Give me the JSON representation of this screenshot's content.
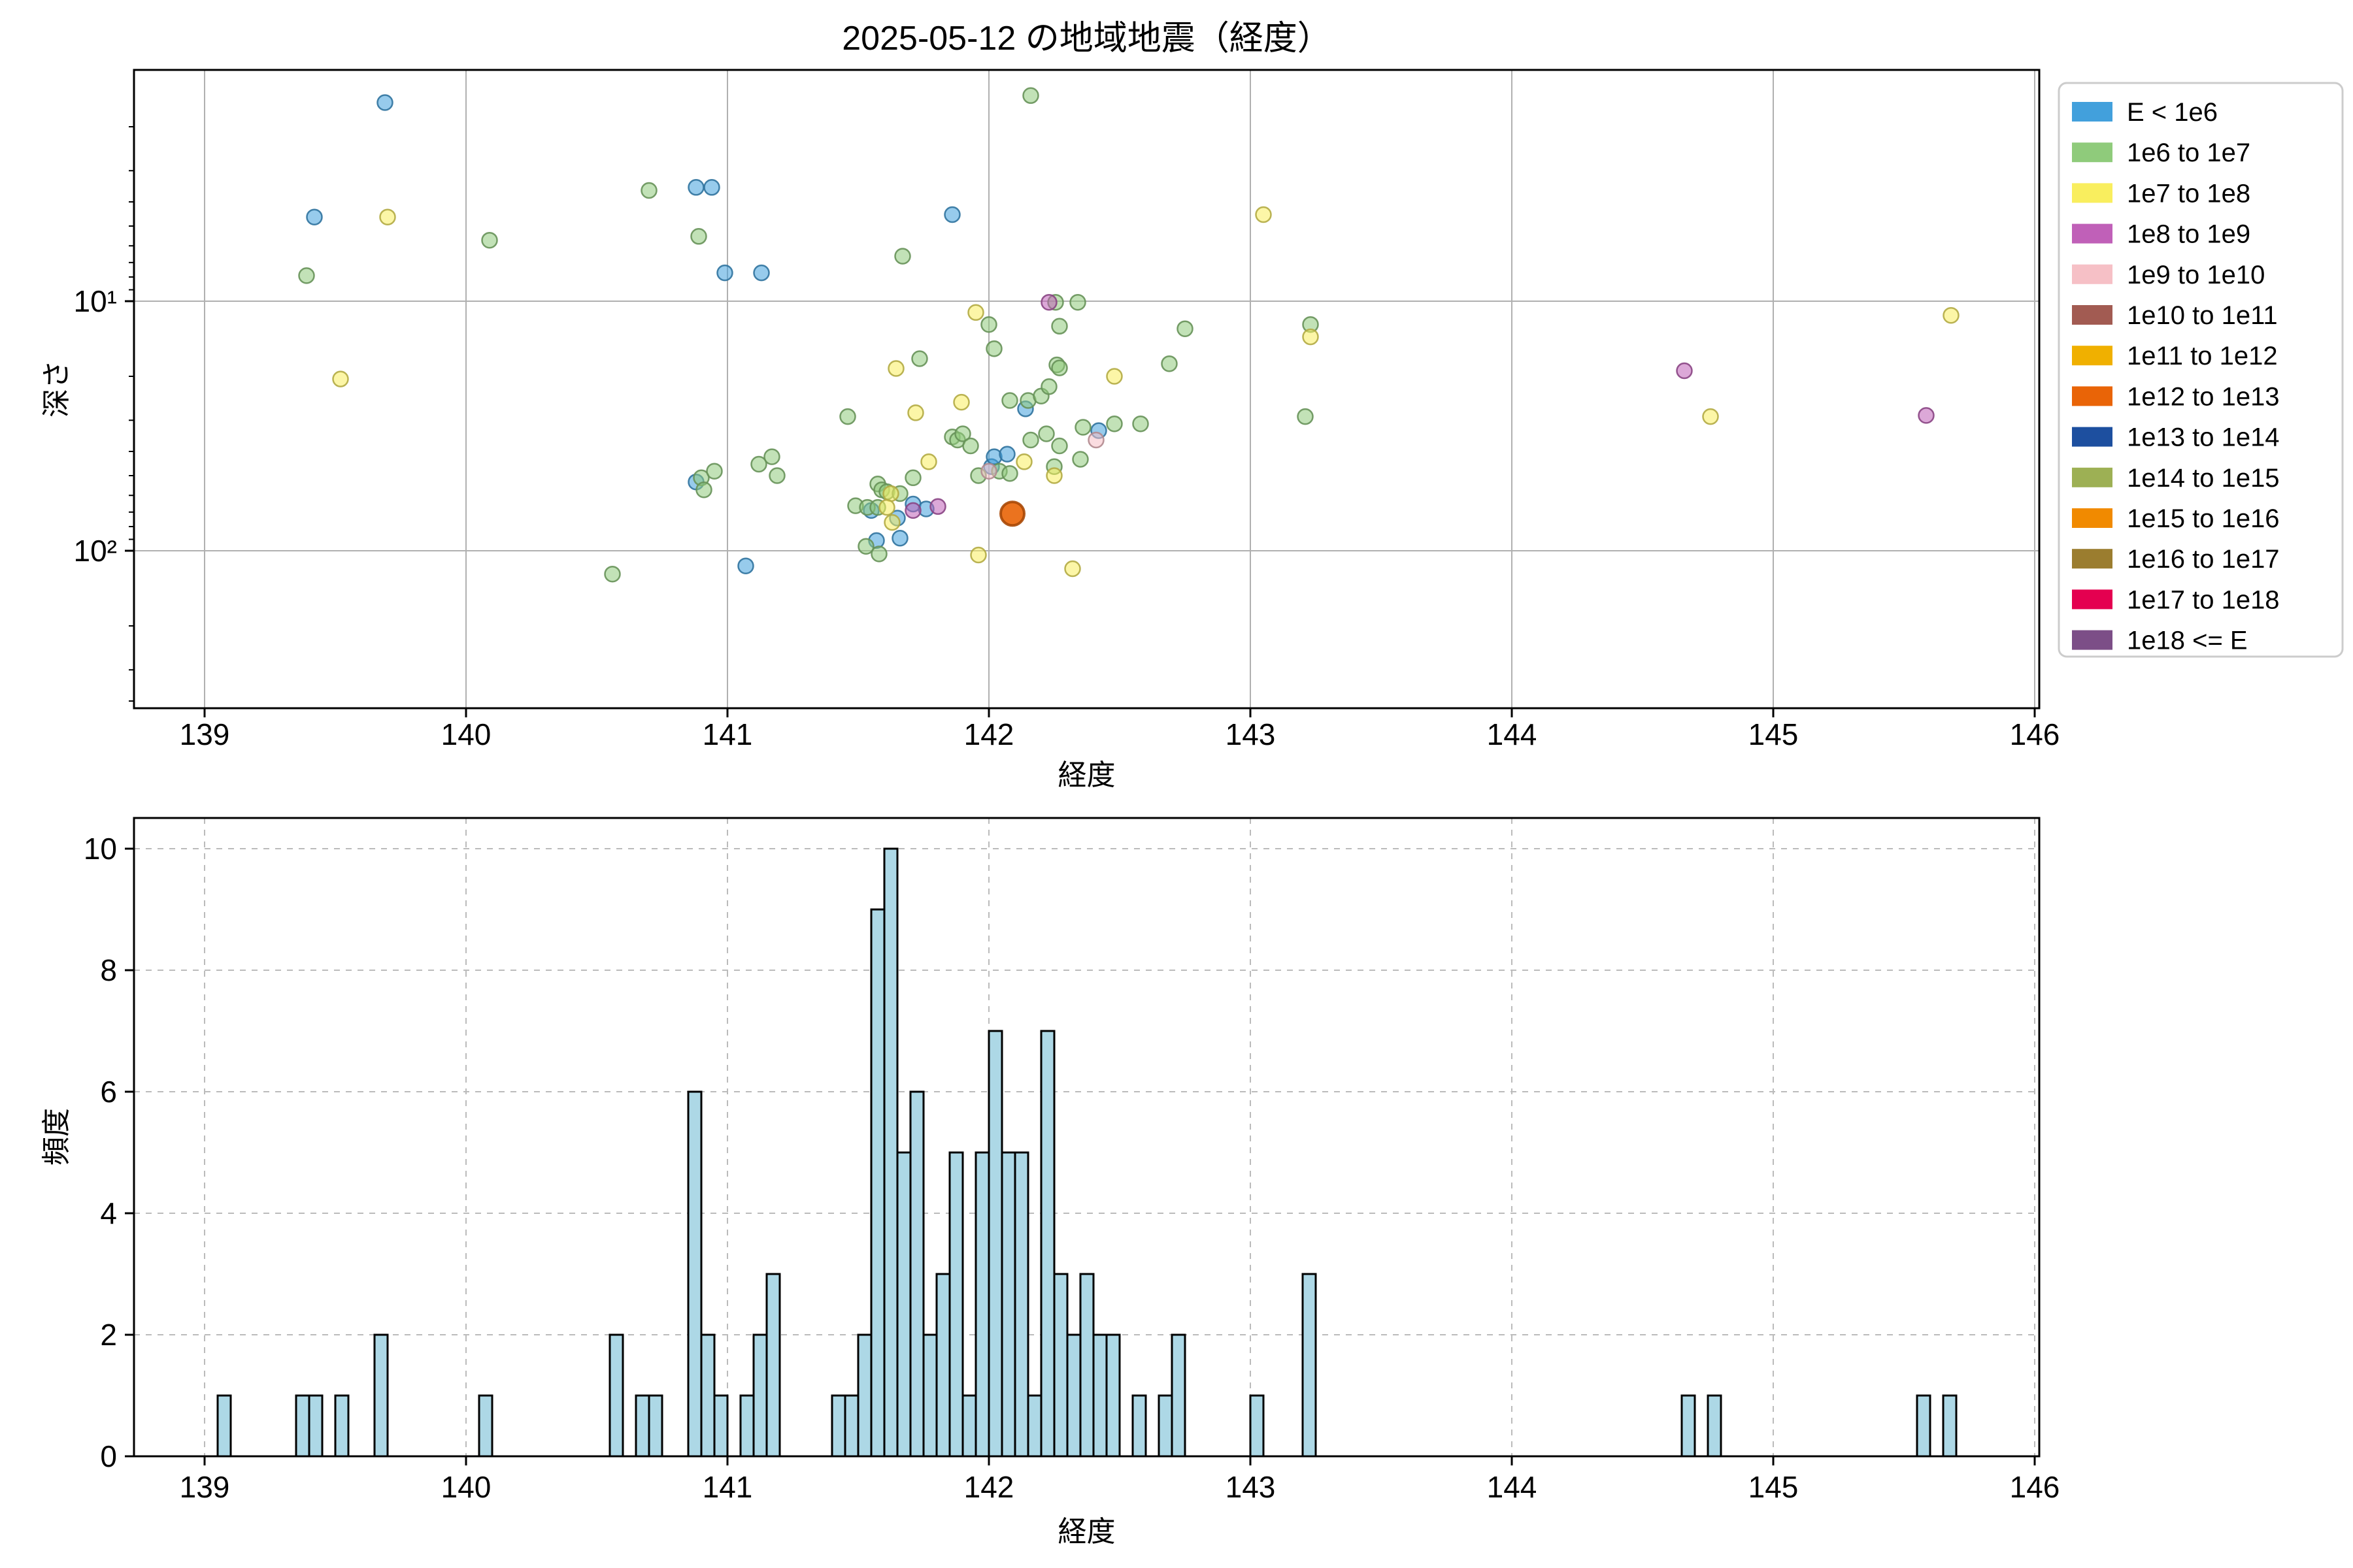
{
  "figure": {
    "title": "2025-05-12 の地域地震（経度）"
  },
  "chart_data": [
    {
      "type": "scatter",
      "title": "2025-05-12 の地域地震（経度）",
      "xlabel": "経度",
      "ylabel": "深さ",
      "x_ticks": [
        139,
        140,
        141,
        142,
        143,
        144,
        145,
        146
      ],
      "xlim": [
        138.73,
        146.02
      ],
      "y_axis": {
        "scale": "log",
        "inverted": true,
        "top_value": 1.18,
        "bottom_value": 427,
        "major_ticks": [
          {
            "value": 10,
            "label": "10¹"
          },
          {
            "value": 100,
            "label": "10²"
          }
        ],
        "minor_ticks": [
          2,
          3,
          4,
          5,
          6,
          7,
          8,
          9,
          20,
          30,
          40,
          50,
          60,
          70,
          80,
          90,
          200,
          300,
          400
        ]
      },
      "grid": "solid",
      "legend_position": "outside-right",
      "legend": [
        {
          "label": "E < 1e6",
          "color": "#42A0DC"
        },
        {
          "label": "1e6 to 1e7",
          "color": "#8FCB7B"
        },
        {
          "label": "1e7 to 1e8",
          "color": "#F9EE5E"
        },
        {
          "label": "1e8 to 1e9",
          "color": "#C060B8"
        },
        {
          "label": "1e9 to 1e10",
          "color": "#F6C0C6"
        },
        {
          "label": "1e10 to 1e11",
          "color": "#A25B52"
        },
        {
          "label": "1e11 to 1e12",
          "color": "#F0B000"
        },
        {
          "label": "1e12 to 1e13",
          "color": "#E96407"
        },
        {
          "label": "1e13 to 1e14",
          "color": "#1D4F9F"
        },
        {
          "label": "1e14 to 1e15",
          "color": "#9DB054"
        },
        {
          "label": "1e15 to 1e16",
          "color": "#F18A00"
        },
        {
          "label": "1e16 to 1e17",
          "color": "#9B7D2F"
        },
        {
          "label": "1e17 to 1e18",
          "color": "#E40050"
        },
        {
          "label": "1e18 <= E",
          "color": "#7C4E87"
        }
      ],
      "series": [
        {
          "name": "E < 1e6",
          "color": "#42A0DC",
          "points": [
            [
              139.69,
              1.6
            ],
            [
              139.42,
              4.6
            ],
            [
              140.88,
              3.5
            ],
            [
              140.94,
              3.5
            ],
            [
              140.99,
              7.7
            ],
            [
              141.13,
              7.7
            ],
            [
              141.86,
              4.5
            ],
            [
              140.88,
              53
            ],
            [
              141.07,
              115
            ],
            [
              141.55,
              69
            ],
            [
              141.65,
              74
            ],
            [
              141.57,
              91
            ],
            [
              141.66,
              89
            ],
            [
              141.71,
              65
            ],
            [
              141.76,
              68
            ],
            [
              142.01,
              46
            ],
            [
              142.02,
              42
            ],
            [
              142.07,
              41
            ],
            [
              142.14,
              27
            ],
            [
              142.42,
              33
            ]
          ]
        },
        {
          "name": "1e6 to 1e7",
          "color": "#8FCB7B",
          "points": [
            [
              139.39,
              7.9
            ],
            [
              140.09,
              5.7
            ],
            [
              140.7,
              3.6
            ],
            [
              140.89,
              5.5
            ],
            [
              140.56,
              124
            ],
            [
              140.9,
              51
            ],
            [
              140.91,
              57
            ],
            [
              140.95,
              48
            ],
            [
              141.12,
              45
            ],
            [
              141.17,
              42
            ],
            [
              141.19,
              50
            ],
            [
              141.46,
              29
            ],
            [
              141.53,
              96
            ],
            [
              141.58,
              103
            ],
            [
              141.575,
              54
            ],
            [
              141.59,
              57
            ],
            [
              141.61,
              58
            ],
            [
              141.49,
              66
            ],
            [
              141.535,
              67
            ],
            [
              141.575,
              67
            ],
            [
              141.66,
              59
            ],
            [
              141.71,
              51
            ],
            [
              141.735,
              17
            ],
            [
              141.67,
              6.6
            ],
            [
              141.86,
              35
            ],
            [
              141.88,
              36
            ],
            [
              141.9,
              34
            ],
            [
              141.93,
              38
            ],
            [
              141.96,
              50
            ],
            [
              142.04,
              48
            ],
            [
              142.08,
              49
            ],
            [
              142.08,
              25
            ],
            [
              142.15,
              25
            ],
            [
              142.16,
              36
            ],
            [
              142.22,
              34
            ],
            [
              142.27,
              38
            ],
            [
              142.2,
              24
            ],
            [
              142.23,
              22
            ],
            [
              142.26,
              18
            ],
            [
              142.16,
              1.5
            ],
            [
              142.0,
              12.4
            ],
            [
              142.02,
              15.5
            ],
            [
              142.255,
              10.1
            ],
            [
              142.34,
              10.1
            ],
            [
              142.27,
              12.6
            ],
            [
              142.75,
              12.9
            ],
            [
              142.27,
              18.5
            ],
            [
              142.69,
              17.8
            ],
            [
              142.36,
              32
            ],
            [
              142.48,
              31
            ],
            [
              142.58,
              31
            ],
            [
              142.35,
              43
            ],
            [
              142.25,
              46
            ],
            [
              143.23,
              12.4
            ],
            [
              143.21,
              29
            ]
          ]
        },
        {
          "name": "1e7 to 1e8",
          "color": "#F9EE5E",
          "points": [
            [
              139.7,
              4.6
            ],
            [
              139.52,
              20.5
            ],
            [
              141.645,
              18.6
            ],
            [
              141.72,
              28
            ],
            [
              141.895,
              25.4
            ],
            [
              141.77,
              44
            ],
            [
              141.625,
              59
            ],
            [
              141.61,
              67
            ],
            [
              141.63,
              77
            ],
            [
              141.96,
              104
            ],
            [
              142.135,
              44
            ],
            [
              142.25,
              50
            ],
            [
              142.48,
              20
            ],
            [
              141.95,
              11.1
            ],
            [
              143.05,
              4.5
            ],
            [
              143.23,
              13.9
            ],
            [
              144.76,
              29
            ],
            [
              145.68,
              11.4
            ],
            [
              142.32,
              118
            ]
          ]
        },
        {
          "name": "1e8 to 1e9",
          "color": "#C060B8",
          "points": [
            [
              141.71,
              69
            ],
            [
              141.805,
              66.5
            ],
            [
              142.23,
              10.1
            ],
            [
              144.66,
              19
            ],
            [
              145.585,
              28.7
            ]
          ]
        },
        {
          "name": "1e9 to 1e10",
          "color": "#F6C0C6",
          "points": [
            [
              142.0,
              48
            ],
            [
              142.41,
              36
            ]
          ]
        },
        {
          "name": "1e12 to 1e13",
          "color": "#E96407",
          "big": true,
          "points": [
            [
              142.09,
              71
            ]
          ]
        }
      ]
    },
    {
      "type": "bar",
      "xlabel": "経度",
      "ylabel": "頻度",
      "x_ticks": [
        139,
        140,
        141,
        142,
        143,
        144,
        145,
        146
      ],
      "y_ticks": [
        0,
        2,
        4,
        6,
        8,
        10
      ],
      "ylim": [
        0,
        10.5
      ],
      "grid": "dashed",
      "bar_color": "#ADD8E6",
      "bar_edge": "#000000",
      "bin_width": 0.05,
      "bars": [
        [
          139.05,
          1
        ],
        [
          139.35,
          1
        ],
        [
          139.4,
          1
        ],
        [
          139.5,
          1
        ],
        [
          139.65,
          2
        ],
        [
          140.05,
          1
        ],
        [
          140.55,
          2
        ],
        [
          140.65,
          1
        ],
        [
          140.7,
          1
        ],
        [
          140.85,
          6
        ],
        [
          140.9,
          2
        ],
        [
          140.95,
          1
        ],
        [
          141.05,
          1
        ],
        [
          141.1,
          2
        ],
        [
          141.15,
          3
        ],
        [
          141.4,
          1
        ],
        [
          141.45,
          1
        ],
        [
          141.5,
          2
        ],
        [
          141.55,
          9
        ],
        [
          141.6,
          10
        ],
        [
          141.65,
          5
        ],
        [
          141.7,
          6
        ],
        [
          141.75,
          2
        ],
        [
          141.8,
          3
        ],
        [
          141.85,
          5
        ],
        [
          141.9,
          1
        ],
        [
          141.95,
          5
        ],
        [
          142.0,
          7
        ],
        [
          142.05,
          5
        ],
        [
          142.1,
          5
        ],
        [
          142.15,
          1
        ],
        [
          142.2,
          7
        ],
        [
          142.25,
          3
        ],
        [
          142.3,
          2
        ],
        [
          142.35,
          3
        ],
        [
          142.4,
          2
        ],
        [
          142.45,
          2
        ],
        [
          142.55,
          1
        ],
        [
          142.65,
          1
        ],
        [
          142.7,
          2
        ],
        [
          143.0,
          1
        ],
        [
          143.2,
          3
        ],
        [
          144.65,
          1
        ],
        [
          144.75,
          1
        ],
        [
          145.55,
          1
        ],
        [
          145.65,
          1
        ]
      ]
    }
  ]
}
